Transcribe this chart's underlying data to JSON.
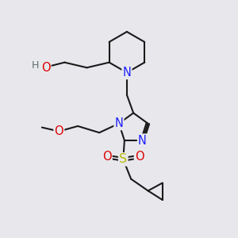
{
  "bg_color": "#e8e8ec",
  "bond_color": "#1a1a1a",
  "N_color": "#2020ff",
  "O_color": "#dd0000",
  "S_color": "#bbbb00",
  "H_color": "#607070",
  "line_width": 1.5,
  "font_size": 9.5,
  "fig_size": [
    3.0,
    3.0
  ],
  "dpi": 100,
  "xlim": [
    0.5,
    9.5
  ],
  "ylim": [
    0.5,
    9.5
  ]
}
